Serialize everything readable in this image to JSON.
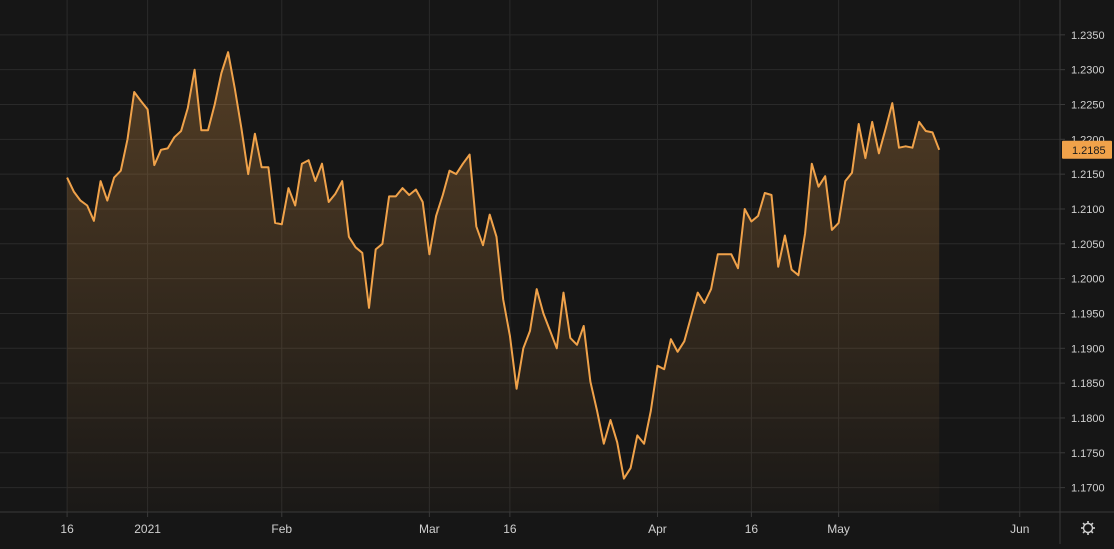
{
  "colors": {
    "background": "#161616",
    "grid": "#2a2a2a",
    "axis": "#3a3a3a",
    "line": "#f0a24a",
    "area_top": "#f0a24a",
    "price_badge": "#f0a24a",
    "price_badge_text": "#1a1a1a",
    "tick_text": "#d0d0d0"
  },
  "icons": {
    "settings": "gear-icon"
  },
  "chart_data": {
    "type": "area",
    "title": "",
    "xlabel": "",
    "ylabel": "",
    "ylim": [
      1.1665,
      1.24
    ],
    "yticks": [
      1.235,
      1.23,
      1.225,
      1.22,
      1.215,
      1.21,
      1.205,
      1.2,
      1.195,
      1.19,
      1.185,
      1.18,
      1.175,
      1.17
    ],
    "ytick_labels": [
      "1.2350",
      "1.2300",
      "1.2250",
      "1.2200",
      "1.2150",
      "1.2100",
      "1.2050",
      "1.2000",
      "1.1950",
      "1.1900",
      "1.1850",
      "1.1800",
      "1.1750",
      "1.1700"
    ],
    "xlim": [
      -10,
      148
    ],
    "xtick_positions": [
      0,
      12,
      32,
      54,
      66,
      88,
      102,
      115,
      142
    ],
    "xtick_labels": [
      "16",
      "2021",
      "Feb",
      "Mar",
      "16",
      "Apr",
      "16",
      "May",
      "Jun"
    ],
    "grid": true,
    "last_value": 1.2185,
    "last_value_label": "1.2185",
    "series": [
      {
        "values": [
          1.2145,
          1.2125,
          1.2112,
          1.2105,
          1.2083,
          1.214,
          1.2112,
          1.2145,
          1.2155,
          1.22,
          1.2268,
          1.2255,
          1.2243,
          1.2163,
          1.2185,
          1.2187,
          1.2203,
          1.2212,
          1.2245,
          1.23,
          1.2213,
          1.2213,
          1.225,
          1.2295,
          1.2325,
          1.2273,
          1.2215,
          1.215,
          1.2208,
          1.216,
          1.216,
          1.208,
          1.2078,
          1.213,
          1.2105,
          1.2165,
          1.217,
          1.214,
          1.2165,
          1.211,
          1.2122,
          1.214,
          1.206,
          1.2045,
          1.2037,
          1.1958,
          1.2042,
          1.205,
          1.2118,
          1.2118,
          1.213,
          1.212,
          1.2128,
          1.211,
          1.2035,
          1.209,
          1.212,
          1.2155,
          1.215,
          1.2165,
          1.2178,
          1.2075,
          1.2048,
          1.2092,
          1.206,
          1.197,
          1.1918,
          1.1842,
          1.19,
          1.1925,
          1.1985,
          1.195,
          1.1925,
          1.19,
          1.198,
          1.1915,
          1.1905,
          1.1932,
          1.1852,
          1.181,
          1.1763,
          1.1797,
          1.1765,
          1.1713,
          1.1728,
          1.1775,
          1.1763,
          1.181,
          1.1875,
          1.187,
          1.1913,
          1.1895,
          1.191,
          1.1945,
          1.198,
          1.1965,
          1.1985,
          1.2035,
          1.2035,
          1.2035,
          1.2015,
          1.21,
          1.2082,
          1.209,
          1.2123,
          1.212,
          1.2017,
          1.2062,
          1.2013,
          1.2005,
          1.2065,
          1.2165,
          1.2132,
          1.2147,
          1.207,
          1.208,
          1.214,
          1.2152,
          1.2222,
          1.2173,
          1.2225,
          1.218,
          1.2215,
          1.2252,
          1.2188,
          1.219,
          1.2188,
          1.2225,
          1.2212,
          1.221,
          1.2185
        ]
      }
    ]
  }
}
